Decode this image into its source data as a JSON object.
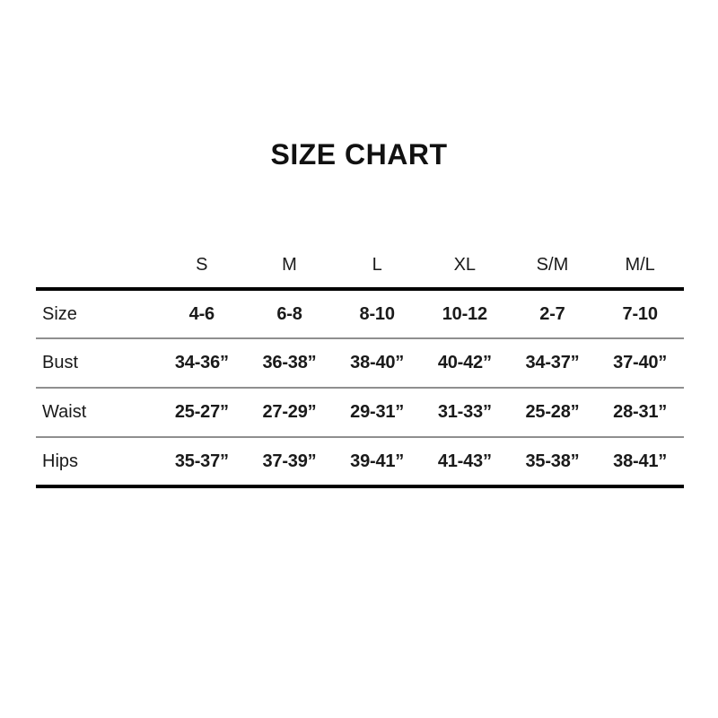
{
  "title": "SIZE CHART",
  "chart_data": {
    "type": "table",
    "title": "SIZE CHART",
    "columns": [
      "S",
      "M",
      "L",
      "XL",
      "S/M",
      "M/L"
    ],
    "row_labels": [
      "Size",
      "Bust",
      "Waist",
      "Hips"
    ],
    "rows": [
      [
        "4-6",
        "6-8",
        "8-10",
        "10-12",
        "2-7",
        "7-10"
      ],
      [
        "34-36”",
        "36-38”",
        "38-40”",
        "40-42”",
        "34-37”",
        "37-40”"
      ],
      [
        "25-27”",
        "27-29”",
        "29-31”",
        "31-33”",
        "25-28”",
        "28-31”"
      ],
      [
        "35-37”",
        "37-39”",
        "39-41”",
        "41-43”",
        "35-38”",
        "38-41”"
      ]
    ],
    "layout": {
      "legend": "none",
      "grid": "horizontal-rules",
      "thick_rule_color": "#000000",
      "thin_rule_color": "#8f8f8f",
      "background": "#ffffff"
    }
  }
}
